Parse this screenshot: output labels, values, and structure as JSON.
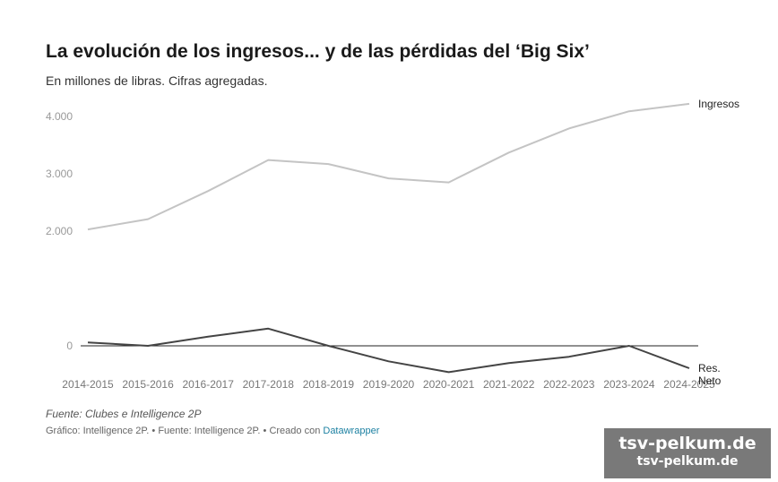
{
  "header": {
    "title": "La evolución de los ingresos... y de las pérdidas del ‘Big Six’",
    "subtitle": "En millones de libras. Cifras agregadas."
  },
  "footer": {
    "source": "Fuente: Clubes e Intelligence 2P",
    "credit_text": "Gráfico: Intelligence 2P. • Fuente: Intelligence 2P. • Creado con ",
    "credit_link": "Datawrapper"
  },
  "watermark": {
    "line1": "tsv-pelkum.de",
    "line2": "tsv-pelkum.de"
  },
  "chart_data": {
    "type": "line",
    "categories": [
      "2014-2015",
      "2015-2016",
      "2016-2017",
      "2017-2018",
      "2018-2019",
      "2019-2020",
      "2020-2021",
      "2021-2022",
      "2022-2023",
      "2023-2024",
      "2024-2025"
    ],
    "y_ticks": [
      {
        "value": 4000,
        "label": "4.000"
      },
      {
        "value": 3000,
        "label": "3.000"
      },
      {
        "value": 2000,
        "label": "2.000"
      },
      {
        "value": 0,
        "label": "0"
      }
    ],
    "ylim": [
      -500,
      4300
    ],
    "series": [
      {
        "name": "Ingresos",
        "color": "#c4c4c4",
        "values": [
          2030,
          2210,
          2700,
          3240,
          3170,
          2920,
          2850,
          3370,
          3790,
          4090,
          4220
        ]
      },
      {
        "name": "Res. Neto",
        "color": "#444444",
        "values": [
          60,
          0,
          160,
          300,
          0,
          -270,
          -460,
          -300,
          -190,
          0,
          -390
        ]
      }
    ]
  }
}
